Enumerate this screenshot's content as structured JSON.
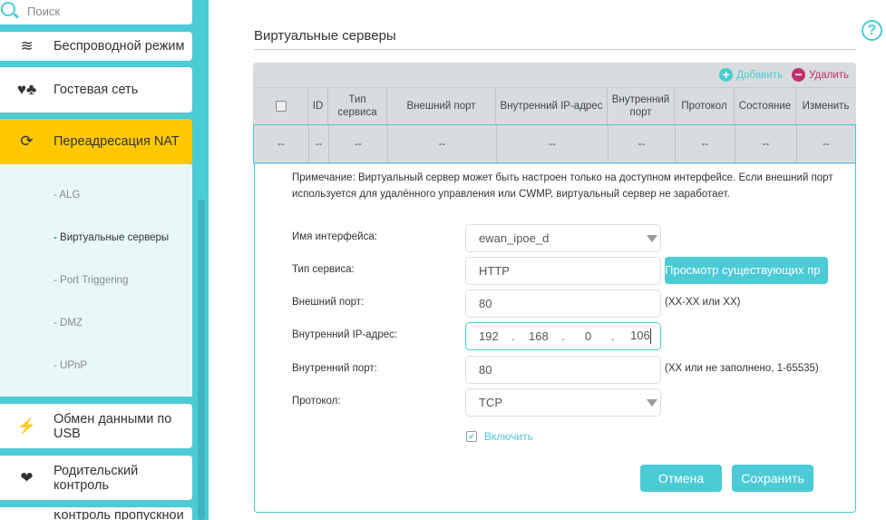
{
  "sidebar": {
    "search_placeholder": "Поиск",
    "items": [
      {
        "label": "Беспроводной режим",
        "icon": "wifi-icon"
      },
      {
        "label": "Гостевая сеть",
        "icon": "guest-network-icon"
      },
      {
        "label": "Переадресация NAT",
        "icon": "nat-icon",
        "active": true
      },
      {
        "label": "Обмен данными по USB",
        "icon": "usb-icon"
      },
      {
        "label": "Родительский контроль",
        "icon": "parental-control-icon"
      },
      {
        "label": "Контроль пропускной",
        "icon": "bandwidth-icon"
      }
    ],
    "sub_items": [
      "- ALG",
      "- Виртуальные серверы",
      "- Port Triggering",
      "- DMZ",
      "- UPnP"
    ]
  },
  "page": {
    "title": "Виртуальные серверы",
    "help": "?"
  },
  "table": {
    "add": "Добавить",
    "delete": "Удалить",
    "columns": [
      "",
      "ID",
      "Тип сервиса",
      "Внешний порт",
      "Внутренний IP-адрес",
      "Внутренний порт",
      "Протокол",
      "Состояние",
      "Изменить"
    ],
    "row": [
      "--",
      "--",
      "--",
      "--",
      "--",
      "--",
      "--",
      "--",
      "--"
    ]
  },
  "form": {
    "note": "Примечание: Виртуальный сервер может быть настроен только на доступном интерфейсе. Если внешний порт используется для удалённого управления или CWMP, виртуальный сервер не заработает.",
    "interface_label": "Имя интерфейса:",
    "interface_value": "ewan_ipoe_d",
    "service_label": "Тип сервиса:",
    "service_value": "HTTP",
    "view_button": "Просмотр существующих пр",
    "ext_port_label": "Внешний порт:",
    "ext_port_value": "80",
    "ext_port_hint": "(XX-XX или XX)",
    "int_ip_label": "Внутренний IP-адрес:",
    "ip": [
      "192",
      "168",
      "0",
      "106"
    ],
    "ip_sep": ".",
    "int_port_label": "Внутренний порт:",
    "int_port_value": "80",
    "int_port_hint": "(XX или не заполнено, 1-65535)",
    "protocol_label": "Протокол:",
    "protocol_value": "TCP",
    "enable_label": "Включить",
    "enable_checked": true,
    "cancel": "Отмена",
    "save": "Сохранить"
  },
  "colors": {
    "accent": "#4acbd6",
    "active": "#ffc800",
    "delete": "#c0306a"
  }
}
